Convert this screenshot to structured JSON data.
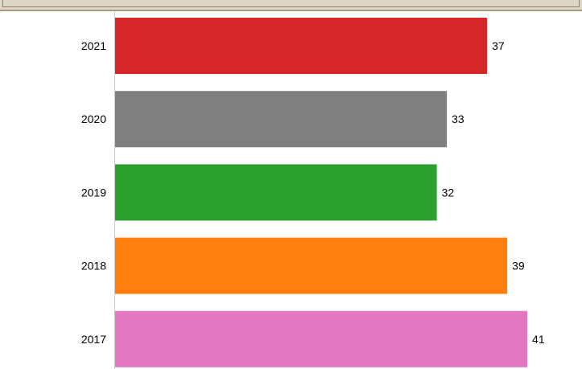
{
  "chart_data": {
    "type": "bar",
    "orientation": "horizontal",
    "categories": [
      "2021",
      "2020",
      "2019",
      "2018",
      "2017"
    ],
    "values": [
      37,
      33,
      32,
      39,
      41
    ],
    "colors": [
      "#d62728",
      "#7f7f7f",
      "#2ca02c",
      "#ff7f0e",
      "#e377c2"
    ],
    "title": "",
    "xlabel": "",
    "ylabel": "",
    "xlim": [
      0,
      45
    ],
    "grid": false,
    "legend": "none"
  }
}
